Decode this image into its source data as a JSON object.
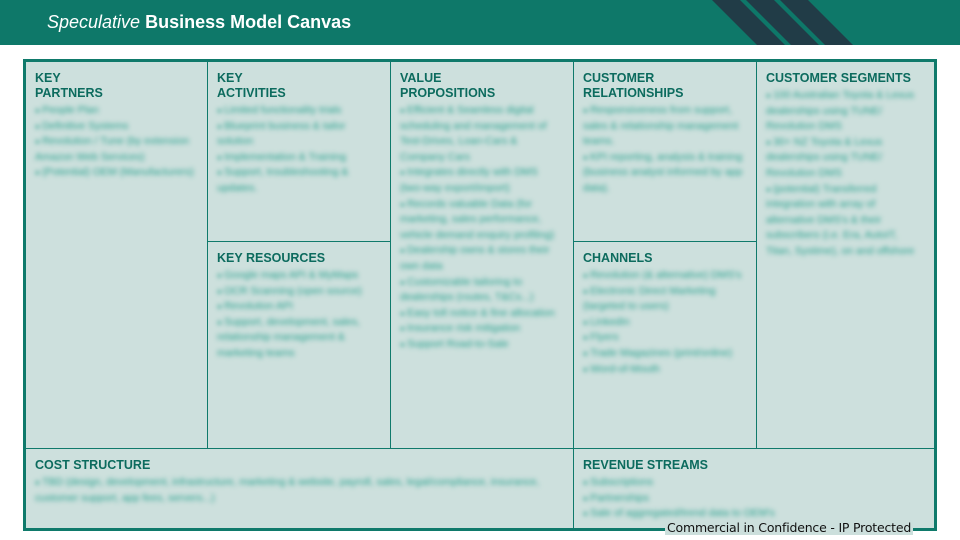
{
  "header": {
    "title_italic": "Speculative",
    "title_bold": "Business Model Canvas",
    "background_color": "#0e7869"
  },
  "canvas": {
    "key_partners": {
      "title": "KEY\nPARTNERS",
      "items": [
        "People Plan",
        "Definitive Systems",
        "Revolution / Tune (by extension Amazon Web Services)",
        "(Potential) OEM (Manufacturers)"
      ]
    },
    "key_activities": {
      "title": "KEY\nACTIVITIES",
      "items": [
        "Limited functionality trials",
        "Blueprint business & tailor solution",
        "Implementation & Training",
        "Support, troubleshooting & updates."
      ]
    },
    "key_resources": {
      "title": "KEY RESOURCES",
      "items": [
        "Google maps API & MyMaps",
        "OCR Scanning (open source)",
        "Revolution API",
        "Support, development, sales, relationship management & marketing teams"
      ]
    },
    "value_propositions": {
      "title": "VALUE\nPROPOSITIONS",
      "items": [
        "Efficient & Seamless digital scheduling and management of Test-Drives, Loan-Cars & Company Cars",
        "Integrates directly with DMS (two-way export/import)",
        "Records valuable Data (for marketing, sales performance, vehicle demand enquiry profiling)",
        "Dealership owns & stores their own data",
        "Customizable tailoring to dealerships (routes, T&Cs...)",
        "Easy toll notice & fine allocation",
        "Insurance risk mitigation",
        "Support Road-to-Sale"
      ]
    },
    "customer_relationships": {
      "title": "CUSTOMER\nRELATIONSHIPS",
      "items": [
        "Responsiveness from support, sales & relationship management teams.",
        "KPI reporting, analysis & training (business analyst informed by app data)."
      ]
    },
    "channels": {
      "title": "CHANNELS",
      "items": [
        "Revolution (& alternative) DMS's",
        "Electronic Direct Marketing (targeted to users)",
        "LinkedIn",
        "Flyers",
        "Trade Magazines (print/online)",
        "Word-of-Mouth"
      ]
    },
    "customer_segments": {
      "title": "CUSTOMER SEGMENTS",
      "items": [
        "100 Australian Toyota & Lexus dealerships using TUNE/ Revolution DMS",
        "30+ NZ Toyota & Lexus dealerships using TUNE/ Revolution DMS",
        "(potential) Transferred integration with array of alternative DMS's & their subscribers (i.e. Era, AutoIT, Titan, Systime), on and offshore"
      ]
    },
    "cost_structure": {
      "title": "COST STRUCTURE",
      "items": [
        "TBD (design, development, infrastructure, marketing & website, payroll, sales, legal/compliance, insurance, customer support, app fees, servers...)"
      ]
    },
    "revenue_streams": {
      "title": "REVENUE STREAMS",
      "items": [
        "Subscriptions",
        "Partnerships",
        "Sale of aggregated/trend data to OEM's"
      ]
    },
    "title_color": "#0c6b5e",
    "border_color": "#0f7a6b",
    "fill_color": "#cde0dd"
  },
  "footer": {
    "note": "Commercial in Confidence - IP Protected"
  }
}
